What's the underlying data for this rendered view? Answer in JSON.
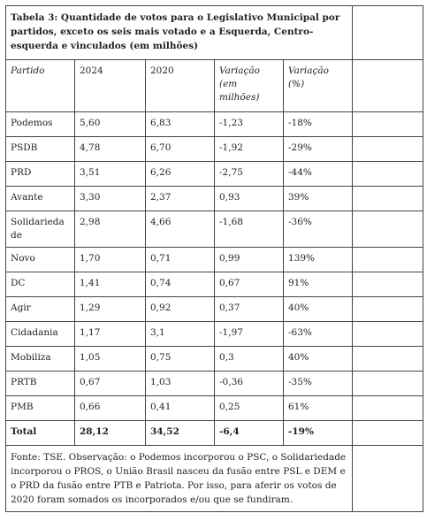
{
  "table": {
    "title": "Tabela 3: Quantidade de votos para o Legislativo Municipal por partidos, exceto os seis mais votado e a Esquerda, Centro-esquerda e vinculados (em milhões)",
    "header": [
      "Partido",
      "2024",
      "2020",
      "Variação (em milhões)",
      "Variação (%)"
    ],
    "rows": [
      [
        "Podemos",
        "5,60",
        "6,83",
        "-1,23",
        "-18%"
      ],
      [
        "PSDB",
        "4,78",
        "6,70",
        "-1,92",
        "-29%"
      ],
      [
        "PRD",
        "3,51",
        "6,26",
        "-2,75",
        "-44%"
      ],
      [
        "Avante",
        "3,30",
        "2,37",
        "0,93",
        "39%"
      ],
      [
        "Solidariedade",
        "2,98",
        "4,66",
        "-1,68",
        "-36%"
      ],
      [
        "Novo",
        "1,70",
        "0,71",
        "0,99",
        "139%"
      ],
      [
        "DC",
        "1,41",
        "0,74",
        "0,67",
        "91%"
      ],
      [
        "Agir",
        "1,29",
        "0,92",
        "0,37",
        "40%"
      ],
      [
        "Cidadania",
        "1,17",
        "3,1",
        "-1,97",
        "-63%"
      ],
      [
        "Mobiliza",
        "1,05",
        "0,75",
        "0,3",
        "40%"
      ],
      [
        "PRTB",
        "0,67",
        "1,03",
        "-0,36",
        "-35%"
      ],
      [
        "PMB",
        "0,66",
        "0,41",
        "0,25",
        "61%"
      ]
    ],
    "total": [
      "Total",
      "28,12",
      "34,52",
      "-6,4",
      "-19%"
    ],
    "footnote": "Fonte: TSE. Observação: o Podemos incorporou o PSC, o Solidariedade incorporou o PROS, o União Brasil nasceu da fusão entre PSL e DEM e o PRD da fusão entre PTB e Patriota. Por isso, para aferir os votos de 2020 foram somados os incorporados e/ou que se fundiram."
  }
}
